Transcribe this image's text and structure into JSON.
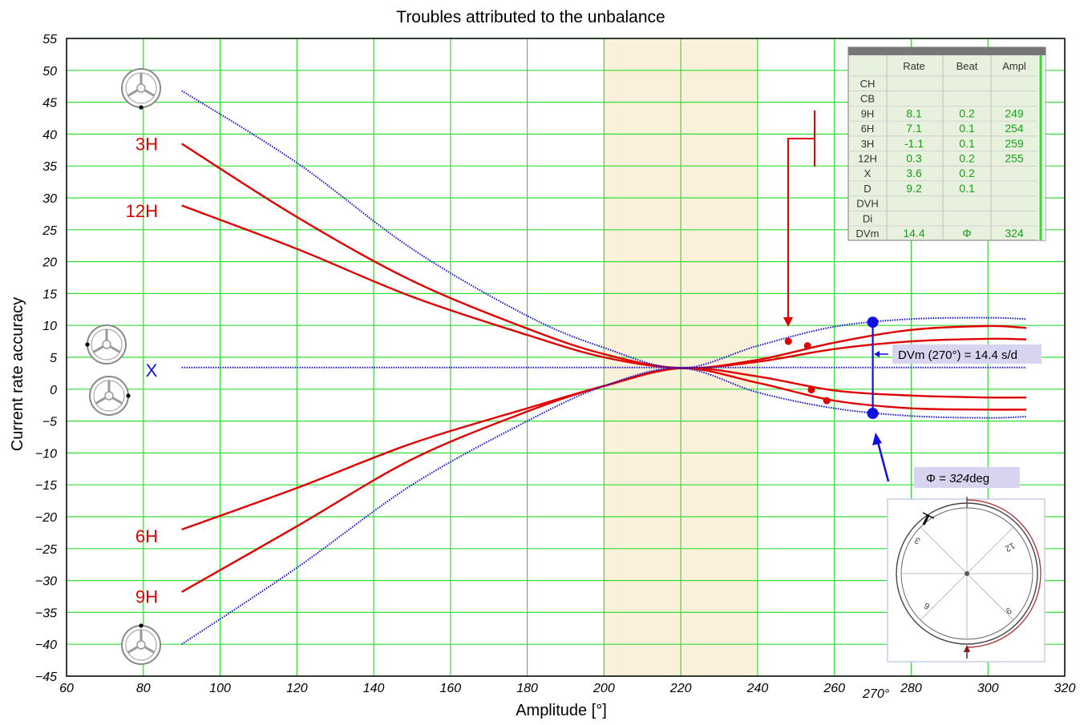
{
  "chart_data": {
    "type": "line",
    "title": "Troubles attributed to the unbalance",
    "xlabel": "Amplitude [°]",
    "ylabel": "Current rate accuracy",
    "xlim": [
      60,
      320
    ],
    "ylim": [
      -45,
      55
    ],
    "xticks": [
      60,
      80,
      100,
      120,
      140,
      160,
      180,
      200,
      220,
      240,
      260,
      280,
      300,
      320
    ],
    "yticks": [
      55,
      50,
      45,
      40,
      35,
      30,
      25,
      20,
      15,
      10,
      5,
      0,
      -5,
      -10,
      -15,
      -20,
      -25,
      -30,
      -35,
      -40,
      -45
    ],
    "extra_xtick_label": "270°",
    "grid": true,
    "shaded_band": [
      200,
      240
    ],
    "series": [
      {
        "name": "3H",
        "color": "#e00000",
        "style": "solid",
        "x": [
          90,
          120,
          150,
          180,
          200,
          220,
          240,
          260,
          280,
          300,
          310
        ],
        "y": [
          38.5,
          27.0,
          17.0,
          9.5,
          5.5,
          3.3,
          4.6,
          7.3,
          9.3,
          9.9,
          9.6
        ]
      },
      {
        "name": "12H",
        "color": "#e00000",
        "style": "solid",
        "x": [
          90,
          120,
          150,
          180,
          200,
          220,
          240,
          260,
          280,
          300,
          310
        ],
        "y": [
          28.8,
          22.0,
          14.5,
          8.5,
          5.0,
          3.3,
          4.3,
          6.3,
          7.5,
          7.9,
          7.8
        ]
      },
      {
        "name": "6H",
        "color": "#e00000",
        "style": "solid",
        "x": [
          90,
          120,
          150,
          180,
          200,
          220,
          240,
          260,
          280,
          300,
          310
        ],
        "y": [
          -22.0,
          -15.5,
          -8.5,
          -3.0,
          0.5,
          3.3,
          2.0,
          -0.2,
          -1.0,
          -1.3,
          -1.3
        ]
      },
      {
        "name": "9H",
        "color": "#e00000",
        "style": "solid",
        "x": [
          90,
          120,
          150,
          180,
          200,
          220,
          240,
          260,
          280,
          300,
          310
        ],
        "y": [
          -31.8,
          -21.5,
          -11.0,
          -3.5,
          0.5,
          3.3,
          1.0,
          -1.8,
          -3.0,
          -3.2,
          -3.2
        ]
      },
      {
        "name": "",
        "color": "#1010e0",
        "style": "dotted",
        "x": [
          90,
          120,
          150,
          180,
          200,
          220,
          240,
          260,
          280,
          300,
          310
        ],
        "y": [
          46.8,
          35.5,
          22.0,
          11.5,
          6.5,
          3.3,
          6.8,
          9.8,
          11.0,
          11.2,
          11.0
        ]
      },
      {
        "name": "",
        "color": "#1010e0",
        "style": "dotted",
        "x": [
          90,
          120,
          150,
          180,
          200,
          220,
          240,
          260,
          280,
          300,
          310
        ],
        "y": [
          -40.0,
          -28.0,
          -15.0,
          -5.0,
          0.5,
          3.3,
          -0.5,
          -3.0,
          -4.2,
          -4.5,
          -4.3
        ]
      },
      {
        "name": "X",
        "color": "#1010e0",
        "style": "dotted",
        "x": [
          90,
          310
        ],
        "y": [
          3.4,
          3.4
        ]
      }
    ],
    "measured_points": [
      {
        "x": 248,
        "y": 7.5,
        "color": "#e00000"
      },
      {
        "x": 253,
        "y": 6.8,
        "color": "#e00000"
      },
      {
        "x": 254,
        "y": -0.1,
        "color": "#e00000"
      },
      {
        "x": 258,
        "y": -1.8,
        "color": "#e00000"
      },
      {
        "x": 270,
        "y": 10.5,
        "color": "#1010e0"
      },
      {
        "x": 270,
        "y": -3.8,
        "color": "#1010e0"
      }
    ],
    "left_labels": [
      {
        "text": "3H",
        "y": 38.5
      },
      {
        "text": "12H",
        "y": 28.0
      },
      {
        "text": "6H",
        "y": -23.0
      },
      {
        "text": "9H",
        "y": -32.5
      }
    ],
    "x_label_y": 3.0,
    "annotation_dvm": "DVm (270°) = 14.4 s/d",
    "annotation_phi": {
      "prefix": "Φ = ",
      "value": "324",
      "suffix": "deg"
    },
    "table": {
      "columns": [
        "",
        "Rate",
        "Beat",
        "Ampl"
      ],
      "rows": [
        [
          "CH",
          "",
          "",
          ""
        ],
        [
          "CB",
          "",
          "",
          ""
        ],
        [
          "9H",
          "8.1",
          "0.2",
          "249"
        ],
        [
          "6H",
          "7.1",
          "0.1",
          "254"
        ],
        [
          "3H",
          "-1.1",
          "0.1",
          "259"
        ],
        [
          "12H",
          "0.3",
          "0.2",
          "255"
        ],
        [
          "X",
          "3.6",
          "0.2",
          ""
        ],
        [
          "D",
          "9.2",
          "0.1",
          ""
        ],
        [
          "DVH",
          "",
          "",
          ""
        ],
        [
          "Di",
          "",
          "",
          ""
        ],
        [
          "DVm",
          "14.4",
          "Φ",
          "324"
        ]
      ]
    },
    "dial_labels": [
      "12",
      "3",
      "6",
      "9"
    ],
    "colors": {
      "grid": "#33dd33",
      "band": "#fbf0da",
      "red": "#e00000",
      "blue": "#1010e0",
      "table_green": "#18a018"
    }
  }
}
